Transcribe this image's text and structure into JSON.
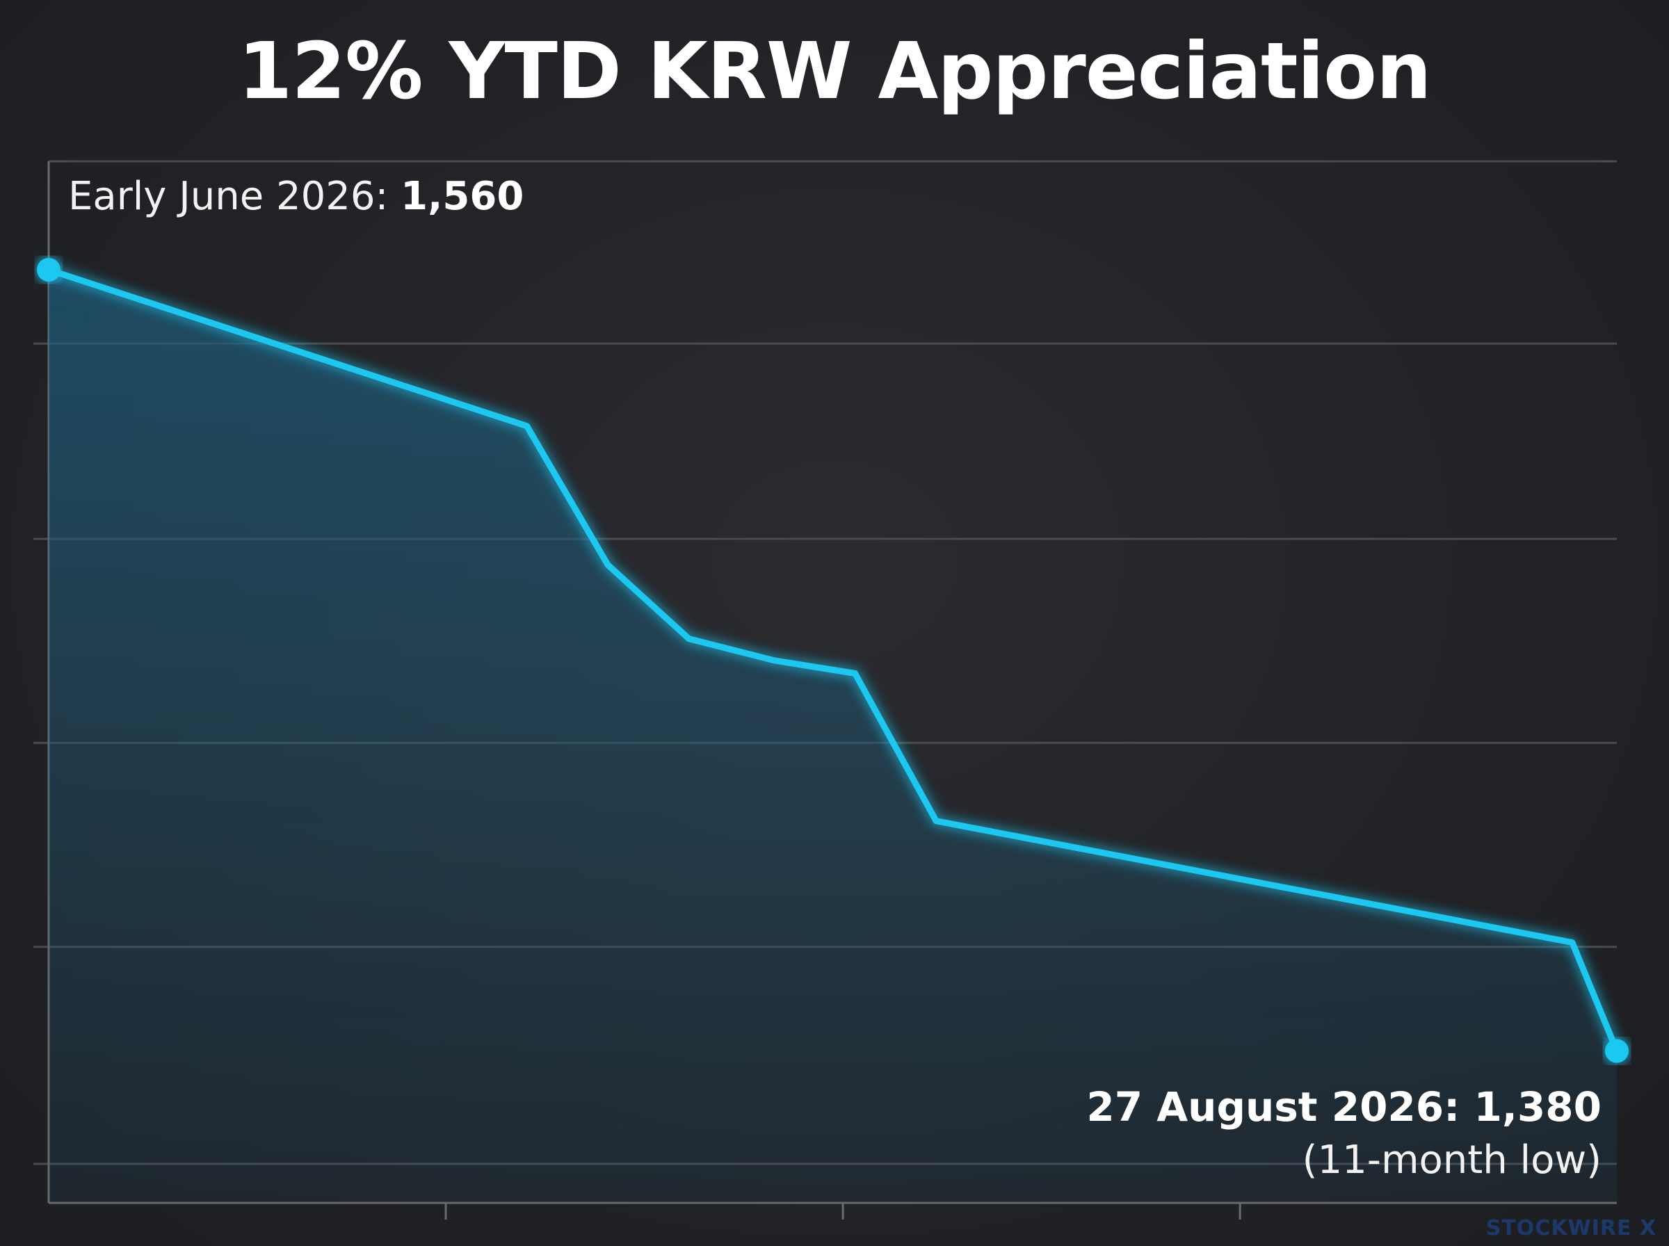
{
  "chart_data": {
    "type": "area",
    "title": "12% YTD KRW Appreciation",
    "xlabel": "",
    "ylabel": "",
    "grid": true,
    "ylim": [
      1345,
      1585
    ],
    "xlim": [
      0,
      38.7
    ],
    "series": [
      {
        "x": [
          0,
          11.8,
          13.8,
          15.8,
          17.9,
          19.9,
          21.9,
          37.6,
          38.7
        ],
        "values": [
          1560,
          1524,
          1492,
          1475,
          1470,
          1467,
          1433,
          1405,
          1380
        ]
      }
    ],
    "x_ticks": [
      9.8,
      19.6,
      29.4
    ],
    "y_gridlines": [
      1543,
      1498,
      1451,
      1404,
      1354
    ],
    "annotations": [
      {
        "label": "Early June 2026: ",
        "value": "1,560"
      },
      {
        "label": "27 August 2026: 1,380",
        "note": "(11-month low)"
      }
    ],
    "colors": {
      "line": "#1ec8f0",
      "fill": "#1e5a78",
      "grid": "#4a4b50",
      "axis": "#6a6b70",
      "background": "#222327"
    }
  },
  "watermark": "STOCKWIRE X"
}
